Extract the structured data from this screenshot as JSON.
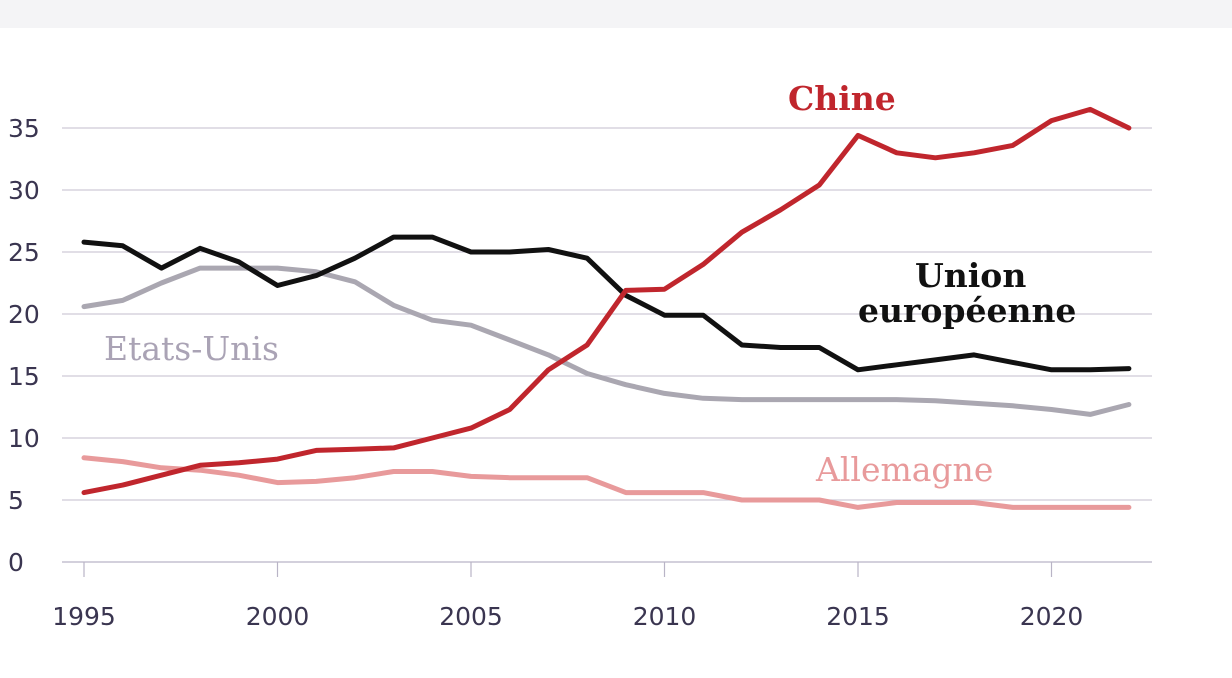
{
  "chart_data": {
    "type": "line",
    "title": "",
    "xlabel": "",
    "ylabel": "",
    "xlim": [
      1995,
      2022
    ],
    "ylim": [
      0,
      35
    ],
    "yticks": [
      0,
      5,
      10,
      15,
      20,
      25,
      30,
      35
    ],
    "xticks": [
      1995,
      2000,
      2005,
      2010,
      2015,
      2020
    ],
    "grid": true,
    "legend": "inline labels",
    "x": [
      1995,
      1996,
      1997,
      1998,
      1999,
      2000,
      2001,
      2002,
      2003,
      2004,
      2005,
      2006,
      2007,
      2008,
      2009,
      2010,
      2011,
      2012,
      2013,
      2014,
      2015,
      2016,
      2017,
      2018,
      2019,
      2020,
      2021,
      2022
    ],
    "series": [
      {
        "name": "Chine",
        "color": "#c0262d",
        "values": [
          5.6,
          6.2,
          7.0,
          7.8,
          8.0,
          8.3,
          9.0,
          9.1,
          9.2,
          10.0,
          10.8,
          12.3,
          15.5,
          17.5,
          21.9,
          22.0,
          24.0,
          26.6,
          28.4,
          30.4,
          34.4,
          33.0,
          32.6,
          33.0,
          33.6,
          35.6,
          36.5,
          35.0
        ]
      },
      {
        "name": "Union européenne",
        "name_line1": "Union",
        "name_line2": "européenne",
        "color": "#111111",
        "values": [
          25.8,
          25.5,
          23.7,
          25.3,
          24.2,
          22.3,
          23.1,
          24.5,
          26.2,
          26.2,
          25.0,
          25.0,
          25.2,
          24.5,
          21.5,
          19.9,
          19.9,
          17.5,
          17.3,
          17.3,
          15.5,
          15.9,
          16.3,
          16.7,
          16.1,
          15.5,
          15.5,
          15.6
        ]
      },
      {
        "name": "Etats-Unis",
        "color": "#aaa7b1",
        "values": [
          20.6,
          21.1,
          22.5,
          23.7,
          23.7,
          23.7,
          23.4,
          22.6,
          20.7,
          19.5,
          19.1,
          17.9,
          16.7,
          15.2,
          14.3,
          13.6,
          13.2,
          13.1,
          13.1,
          13.1,
          13.1,
          13.1,
          13.0,
          12.8,
          12.6,
          12.3,
          11.9,
          12.7
        ]
      },
      {
        "name": "Allemagne",
        "color": "#e89a9b",
        "values": [
          8.4,
          8.1,
          7.6,
          7.4,
          7.0,
          6.4,
          6.5,
          6.8,
          7.3,
          7.3,
          6.9,
          6.8,
          6.8,
          6.8,
          5.6,
          5.6,
          5.6,
          5.0,
          5.0,
          5.0,
          4.4,
          4.8,
          4.8,
          4.8,
          4.4,
          4.4,
          4.4,
          4.4
        ]
      }
    ]
  }
}
